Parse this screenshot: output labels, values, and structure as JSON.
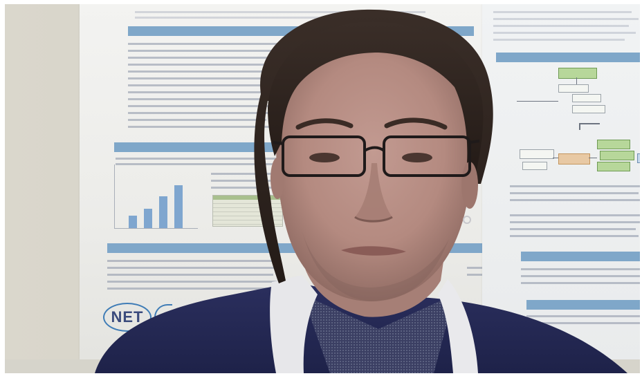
{
  "image": {
    "description_tag": "webcam-frame",
    "colors": {
      "wall": "#d8d5ca",
      "poster_paper": "#efefec",
      "poster_header_blue": "#7fa7c9",
      "sweater": "#252a55",
      "collar": "#e9e9ec",
      "hair": "#2f2520",
      "skin": "#b88d84",
      "logo_blue": "#3a4a7c"
    }
  },
  "poster_left": {
    "section_headers": [
      "",
      "",
      ""
    ],
    "logo_text": "NET"
  },
  "poster_right": {
    "section_headers": [
      "",
      "",
      ""
    ]
  }
}
